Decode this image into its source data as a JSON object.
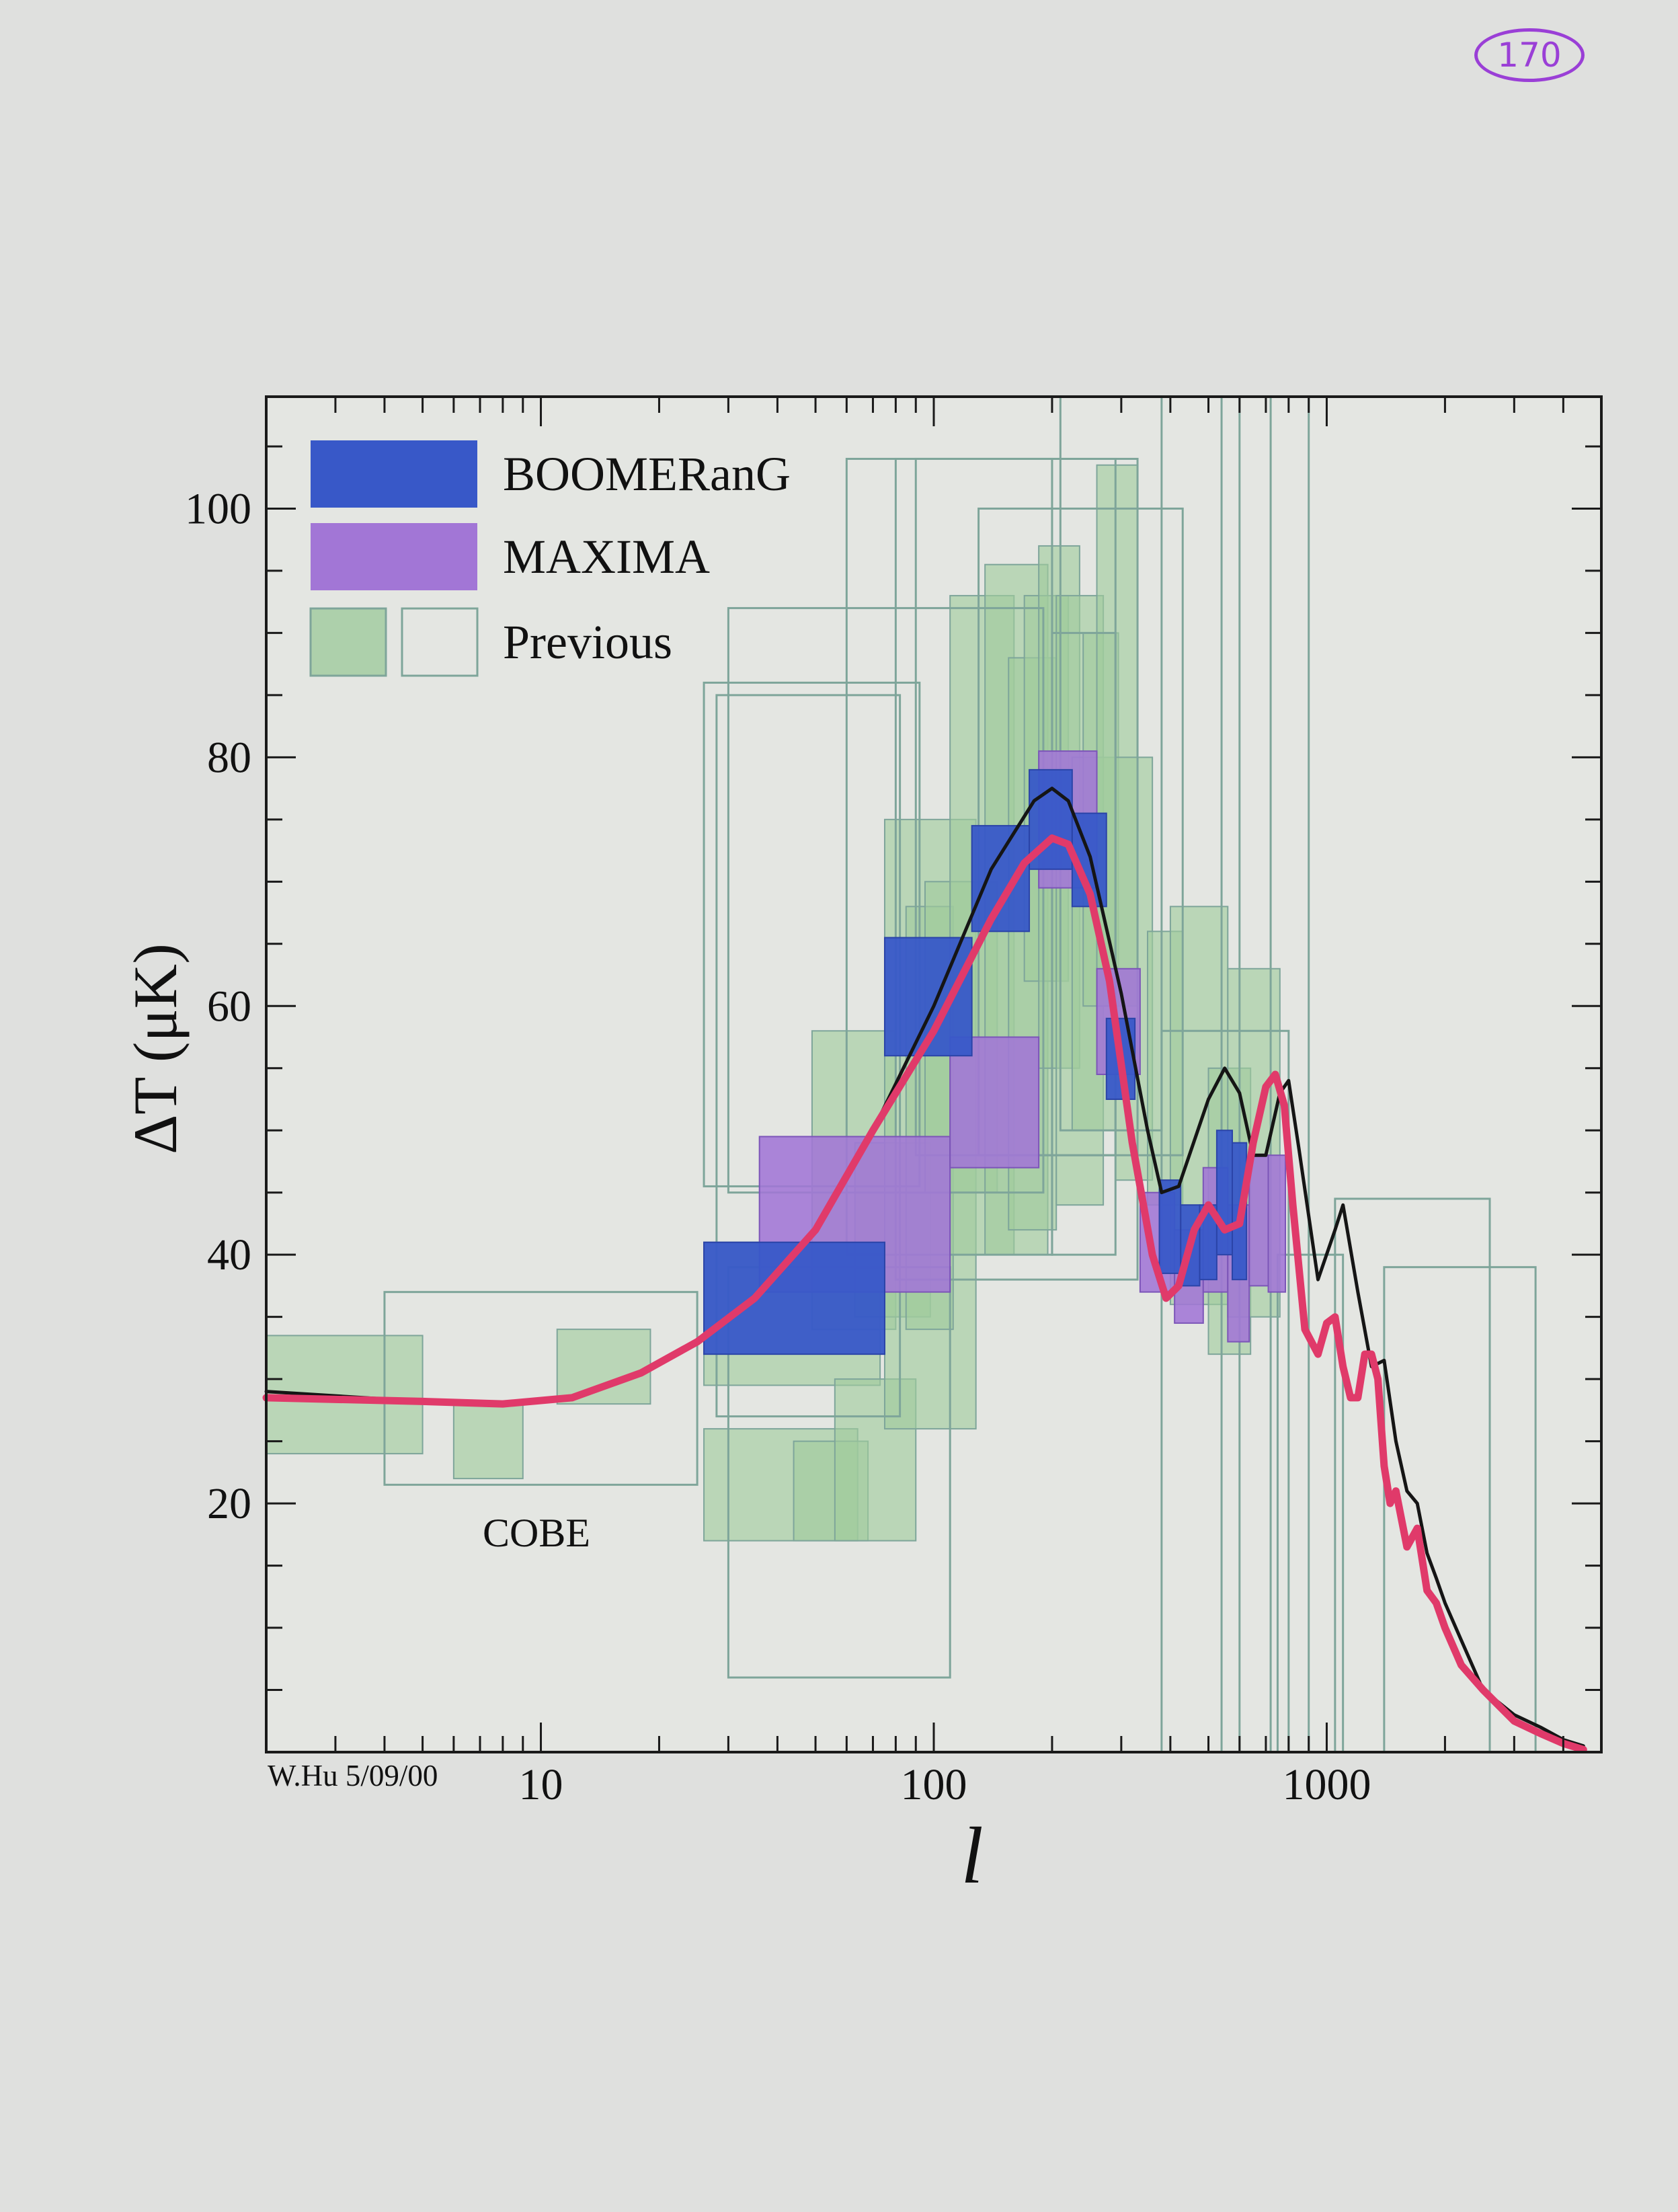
{
  "page_number": "170",
  "chart_data": {
    "type": "scatter",
    "title": "",
    "xlabel": "l",
    "ylabel": "ΔT (μK)",
    "x_scale": "log",
    "xlim": [
      2,
      5000
    ],
    "ylim": [
      0,
      109
    ],
    "x_tick_labels": [
      {
        "value": 10,
        "label": "10"
      },
      {
        "value": 100,
        "label": "100"
      },
      {
        "value": 1000,
        "label": "1000"
      }
    ],
    "y_tick_labels": [
      {
        "value": 20,
        "label": "20"
      },
      {
        "value": 40,
        "label": "40"
      },
      {
        "value": 60,
        "label": "60"
      },
      {
        "value": 80,
        "label": "80"
      },
      {
        "value": 100,
        "label": "100"
      }
    ],
    "legend": {
      "placement": "top-left",
      "entries": [
        {
          "label": "BOOMERanG",
          "color": "#3858c8",
          "style": "filled"
        },
        {
          "label": "MAXIMA",
          "color": "#a276d6",
          "style": "filled"
        },
        {
          "label": "Previous",
          "color": "#9fcb9d",
          "style": "filled-and-open"
        }
      ]
    },
    "annotations": [
      {
        "text": "COBE",
        "x": 9,
        "y": 20.5
      },
      {
        "text": "W.Hu 5/09/00",
        "position": "bottom-left"
      }
    ],
    "colors": {
      "boomerang": "#3858c8",
      "maxima": "#a276d6",
      "previous_fill": "#9fcb9d",
      "previous_outline": "#7ea59a",
      "model_black": "#151515",
      "model_red": "#e03a6a"
    },
    "series": [
      {
        "name": "BOOMERanG",
        "kind": "filled-box",
        "boxes": [
          {
            "l_min": 26,
            "l_max": 75,
            "dt_min": 32,
            "dt_max": 41
          },
          {
            "l_min": 75,
            "l_max": 125,
            "dt_min": 56,
            "dt_max": 65.5
          },
          {
            "l_min": 125,
            "l_max": 175,
            "dt_min": 66,
            "dt_max": 74.5
          },
          {
            "l_min": 175,
            "l_max": 225,
            "dt_min": 71,
            "dt_max": 79
          },
          {
            "l_min": 225,
            "l_max": 275,
            "dt_min": 68,
            "dt_max": 75.5
          },
          {
            "l_min": 275,
            "l_max": 325,
            "dt_min": 52.5,
            "dt_max": 59
          },
          {
            "l_min": 375,
            "l_max": 425,
            "dt_min": 38.5,
            "dt_max": 46
          },
          {
            "l_min": 425,
            "l_max": 475,
            "dt_min": 37.5,
            "dt_max": 44
          },
          {
            "l_min": 475,
            "l_max": 525,
            "dt_min": 38,
            "dt_max": 44
          },
          {
            "l_min": 525,
            "l_max": 575,
            "dt_min": 40,
            "dt_max": 50
          },
          {
            "l_min": 575,
            "l_max": 625,
            "dt_min": 38,
            "dt_max": 49
          }
        ]
      },
      {
        "name": "MAXIMA",
        "kind": "filled-box",
        "boxes": [
          {
            "l_min": 36,
            "l_max": 110,
            "dt_min": 37,
            "dt_max": 49.5
          },
          {
            "l_min": 110,
            "l_max": 185,
            "dt_min": 47,
            "dt_max": 57.5
          },
          {
            "l_min": 185,
            "l_max": 260,
            "dt_min": 69.5,
            "dt_max": 80.5
          },
          {
            "l_min": 260,
            "l_max": 335,
            "dt_min": 54.5,
            "dt_max": 63
          },
          {
            "l_min": 335,
            "l_max": 410,
            "dt_min": 37,
            "dt_max": 45
          },
          {
            "l_min": 410,
            "l_max": 485,
            "dt_min": 34.5,
            "dt_max": 42
          },
          {
            "l_min": 485,
            "l_max": 560,
            "dt_min": 37,
            "dt_max": 47
          },
          {
            "l_min": 560,
            "l_max": 635,
            "dt_min": 33,
            "dt_max": 44
          },
          {
            "l_min": 635,
            "l_max": 710,
            "dt_min": 37.5,
            "dt_max": 48
          },
          {
            "l_min": 710,
            "l_max": 785,
            "dt_min": 37,
            "dt_max": 48
          }
        ]
      },
      {
        "name": "Previous",
        "kind": "filled-box",
        "boxes": [
          {
            "l_min": 2,
            "l_max": 5,
            "dt_min": 24,
            "dt_max": 33.5
          },
          {
            "l_min": 6,
            "l_max": 9,
            "dt_min": 22,
            "dt_max": 28
          },
          {
            "l_min": 11,
            "l_max": 19,
            "dt_min": 28,
            "dt_max": 34
          },
          {
            "l_min": 26,
            "l_max": 73,
            "dt_min": 29.5,
            "dt_max": 41
          },
          {
            "l_min": 26,
            "l_max": 64,
            "dt_min": 17,
            "dt_max": 26
          },
          {
            "l_min": 44,
            "l_max": 68,
            "dt_min": 17,
            "dt_max": 25
          },
          {
            "l_min": 56,
            "l_max": 90,
            "dt_min": 17,
            "dt_max": 30
          },
          {
            "l_min": 49,
            "l_max": 80,
            "dt_min": 34,
            "dt_max": 58
          },
          {
            "l_min": 63,
            "l_max": 98,
            "dt_min": 35,
            "dt_max": 49
          },
          {
            "l_min": 75,
            "l_max": 128,
            "dt_min": 26,
            "dt_max": 75
          },
          {
            "l_min": 85,
            "l_max": 112,
            "dt_min": 34,
            "dt_max": 68
          },
          {
            "l_min": 95,
            "l_max": 145,
            "dt_min": 45,
            "dt_max": 70
          },
          {
            "l_min": 110,
            "l_max": 160,
            "dt_min": 40,
            "dt_max": 93
          },
          {
            "l_min": 135,
            "l_max": 195,
            "dt_min": 40,
            "dt_max": 95.5
          },
          {
            "l_min": 155,
            "l_max": 205,
            "dt_min": 42,
            "dt_max": 88
          },
          {
            "l_min": 170,
            "l_max": 220,
            "dt_min": 62,
            "dt_max": 93
          },
          {
            "l_min": 185,
            "l_max": 235,
            "dt_min": 55,
            "dt_max": 97
          },
          {
            "l_min": 205,
            "l_max": 270,
            "dt_min": 44,
            "dt_max": 93
          },
          {
            "l_min": 225,
            "l_max": 290,
            "dt_min": 50,
            "dt_max": 80
          },
          {
            "l_min": 240,
            "l_max": 295,
            "dt_min": 60,
            "dt_max": 90
          },
          {
            "l_min": 260,
            "l_max": 330,
            "dt_min": 60,
            "dt_max": 103.5
          },
          {
            "l_min": 290,
            "l_max": 360,
            "dt_min": 46,
            "dt_max": 80
          },
          {
            "l_min": 350,
            "l_max": 430,
            "dt_min": 44,
            "dt_max": 66
          },
          {
            "l_min": 400,
            "l_max": 560,
            "dt_min": 36,
            "dt_max": 68
          },
          {
            "l_min": 500,
            "l_max": 640,
            "dt_min": 32,
            "dt_max": 55
          },
          {
            "l_min": 560,
            "l_max": 760,
            "dt_min": 35,
            "dt_max": 63
          }
        ]
      },
      {
        "name": "Previous (open boxes)",
        "kind": "open-box",
        "boxes": [
          {
            "l_min": 4,
            "l_max": 25,
            "dt_min": 21.5,
            "dt_max": 37
          },
          {
            "l_min": 26,
            "l_max": 92,
            "dt_min": 45.5,
            "dt_max": 86
          },
          {
            "l_min": 28,
            "l_max": 82,
            "dt_min": 27,
            "dt_max": 85
          },
          {
            "l_min": 30,
            "l_max": 110,
            "dt_min": 6,
            "dt_max": 39
          },
          {
            "l_min": 30,
            "l_max": 190,
            "dt_min": 45,
            "dt_max": 92
          },
          {
            "l_min": 60,
            "l_max": 200,
            "dt_min": 40,
            "dt_max": 104
          },
          {
            "l_min": 80,
            "l_max": 330,
            "dt_min": 38,
            "dt_max": 104
          },
          {
            "l_min": 90,
            "l_max": 290,
            "dt_min": 48,
            "dt_max": 104
          },
          {
            "l_min": 130,
            "l_max": 430,
            "dt_min": 48,
            "dt_max": 100
          },
          {
            "l_min": 210,
            "l_max": 380,
            "dt_min": 50,
            "dt_max": 109
          },
          {
            "l_min": 200,
            "l_max": 290,
            "dt_min": 40,
            "dt_max": 90
          },
          {
            "l_min": 380,
            "l_max": 800,
            "dt_min": 0,
            "dt_max": 58
          },
          {
            "l_min": 540,
            "l_max": 720,
            "dt_min": 0,
            "dt_max": 109
          },
          {
            "l_min": 600,
            "l_max": 900,
            "dt_min": 0,
            "dt_max": 109
          },
          {
            "l_min": 750,
            "l_max": 1100,
            "dt_min": 0,
            "dt_max": 40
          },
          {
            "l_min": 1050,
            "l_max": 2600,
            "dt_min": 0,
            "dt_max": 44.5
          },
          {
            "l_min": 1400,
            "l_max": 3400,
            "dt_min": 0,
            "dt_max": 39
          }
        ]
      },
      {
        "name": "",
        "kind": "line",
        "color": "#151515",
        "x": [
          2,
          5,
          8,
          12,
          18,
          25,
          35,
          50,
          70,
          100,
          140,
          180,
          200,
          220,
          250,
          300,
          350,
          380,
          420,
          500,
          550,
          600,
          650,
          700,
          760,
          800,
          850,
          950,
          1050,
          1100,
          1200,
          1300,
          1400,
          1500,
          1600,
          1700,
          1800,
          1900,
          2000,
          2200,
          2500,
          3000,
          3500,
          4000,
          4500
        ],
        "y": [
          29,
          28.2,
          28,
          28.5,
          30.5,
          33,
          36.5,
          42,
          50,
          60,
          71,
          76.5,
          77.5,
          76.5,
          72,
          61,
          50,
          45,
          45.5,
          52.5,
          55,
          53,
          48,
          48,
          53,
          54,
          48.5,
          38,
          42,
          44,
          37,
          31,
          31.5,
          25,
          21,
          20,
          16,
          14,
          12,
          9,
          5,
          3,
          2,
          1,
          0.5
        ]
      },
      {
        "name": "",
        "kind": "line",
        "color": "#e03a6a",
        "x": [
          2,
          5,
          8,
          12,
          18,
          25,
          35,
          50,
          70,
          100,
          140,
          170,
          200,
          220,
          250,
          280,
          320,
          360,
          390,
          420,
          460,
          500,
          550,
          600,
          650,
          700,
          740,
          780,
          820,
          880,
          950,
          1000,
          1050,
          1100,
          1150,
          1200,
          1250,
          1300,
          1350,
          1400,
          1450,
          1500,
          1600,
          1700,
          1800,
          1900,
          2000,
          2200,
          2500,
          3000,
          3500,
          4000,
          4500
        ],
        "y": [
          28.5,
          28.2,
          28,
          28.5,
          30.5,
          33,
          36.5,
          42,
          50,
          58,
          67,
          71.5,
          73.5,
          73,
          69,
          62,
          49,
          40,
          36.5,
          37.5,
          42,
          44,
          42,
          42.5,
          49,
          53.5,
          54.5,
          52,
          44,
          34,
          32,
          34.5,
          35,
          31,
          28.5,
          28.5,
          32,
          32,
          30,
          23,
          20,
          21,
          16.5,
          18,
          13,
          12,
          10,
          7,
          5,
          2.5,
          1.5,
          0.7,
          0.2
        ]
      }
    ]
  }
}
